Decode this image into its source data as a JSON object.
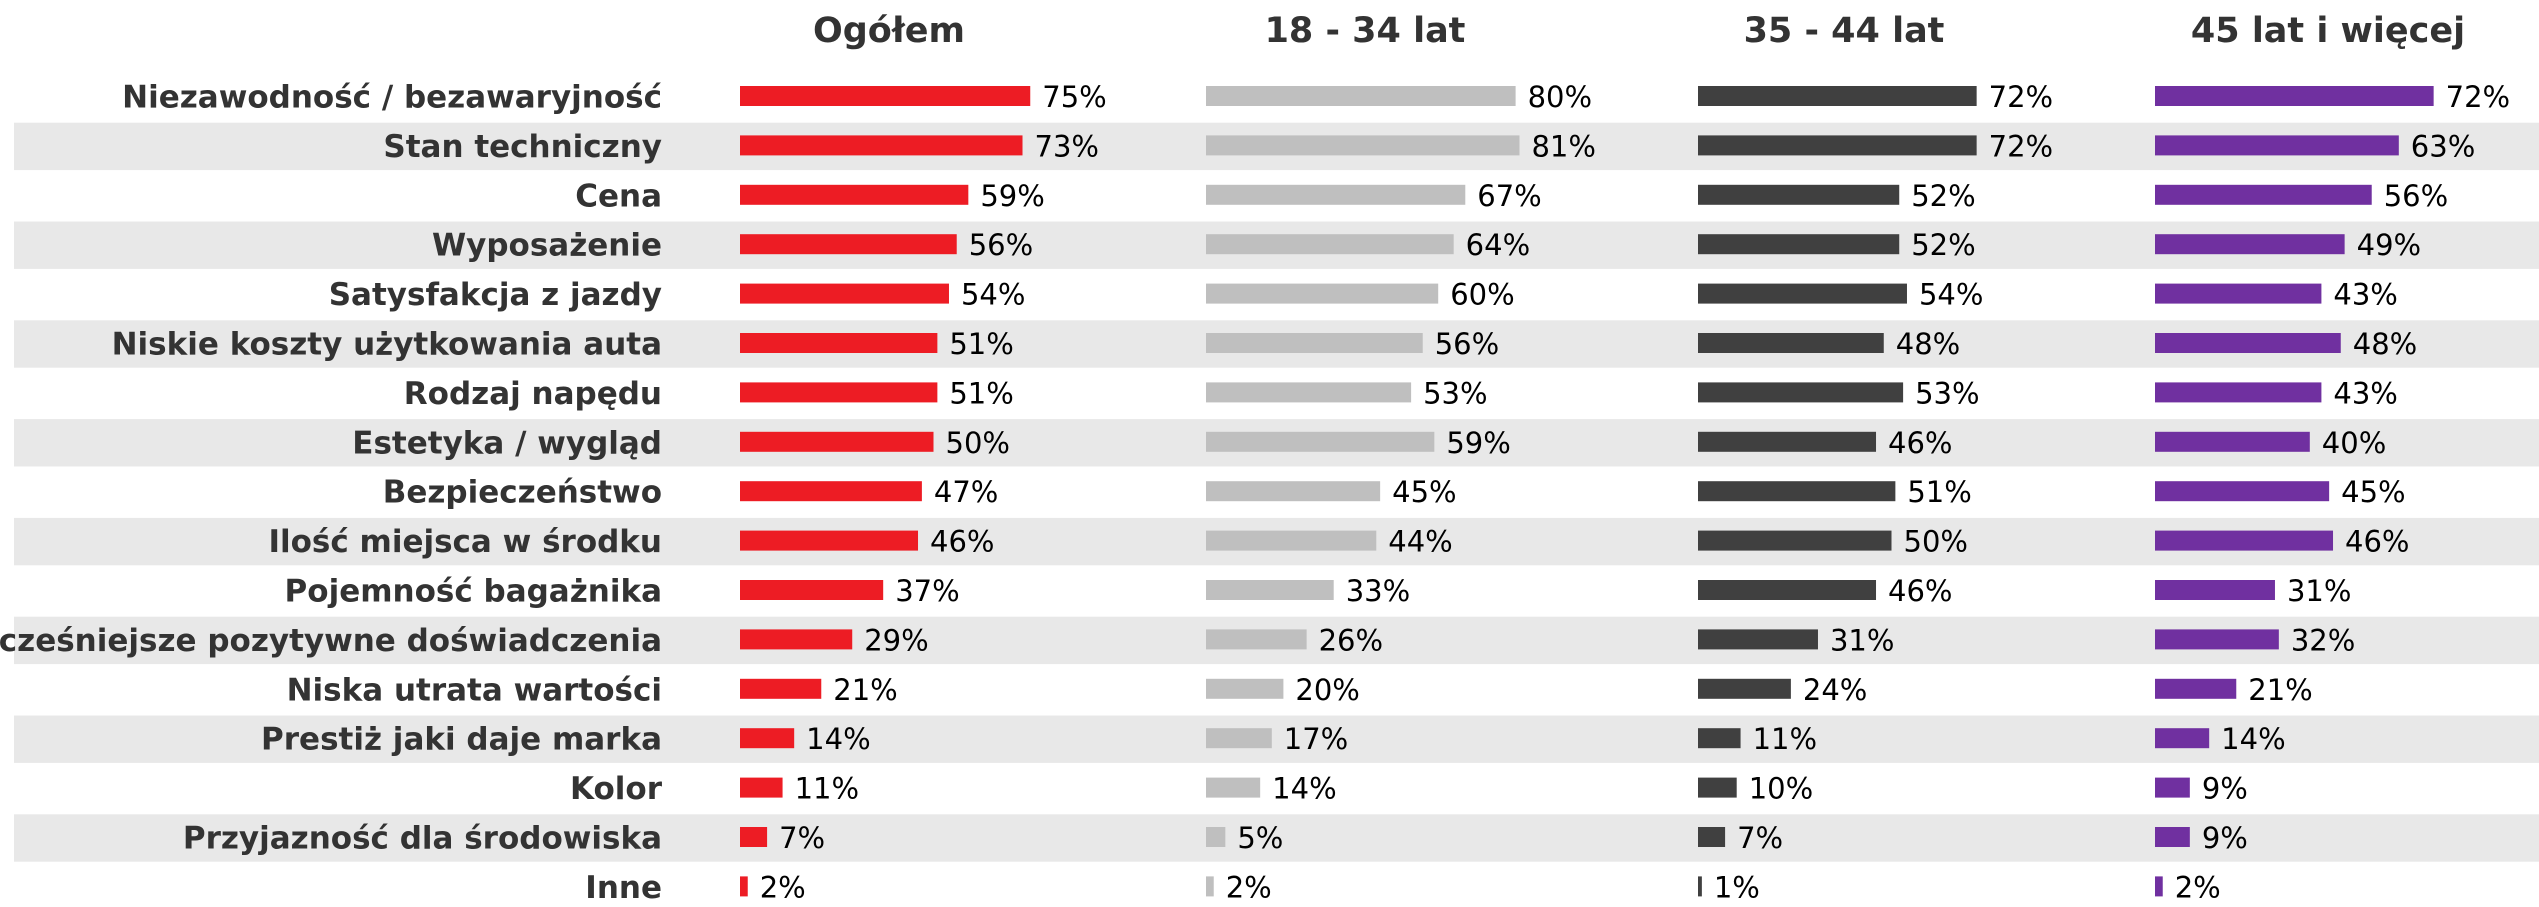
{
  "chart_data": {
    "type": "bar",
    "categories": [
      "Niezawodność / bezawaryjność",
      "Stan techniczny",
      "Cena",
      "Wyposażenie",
      "Satysfakcja z jazdy",
      "Niskie koszty użytkowania auta",
      "Rodzaj napędu",
      "Estetyka / wygląd",
      "Bezpieczeństwo",
      "Ilość miejsca w środku",
      "Pojemność bagażnika",
      "Wcześniejsze pozytywne doświadczenia",
      "Niska utrata wartości",
      "Prestiż jaki daje marka",
      "Kolor",
      "Przyjazność dla środowiska",
      "Inne"
    ],
    "series": [
      {
        "name": "Ogółem",
        "color": "#ed1c24",
        "values": [
          75,
          73,
          59,
          56,
          54,
          51,
          51,
          50,
          47,
          46,
          37,
          29,
          21,
          14,
          11,
          7,
          2
        ],
        "value_labels": [
          "75%",
          "73%",
          "59%",
          "56%",
          "54%",
          "51%",
          "51%",
          "50%",
          "47%",
          "46%",
          "37%",
          "29%",
          "21%",
          "14%",
          "11%",
          "7%",
          "2%"
        ]
      },
      {
        "name": "18 - 34 lat",
        "color": "#bfbfbf",
        "values": [
          80,
          81,
          67,
          64,
          60,
          56,
          53,
          59,
          45,
          44,
          33,
          26,
          20,
          17,
          14,
          5,
          2
        ],
        "value_labels": [
          "80%",
          "81%",
          "67%",
          "64%",
          "60%",
          "56%",
          "53%",
          "59%",
          "45%",
          "44%",
          "33%",
          "26%",
          "20%",
          "17%",
          "14%",
          "5%",
          "2%"
        ]
      },
      {
        "name": "35 - 44 lat",
        "color": "#404040",
        "values": [
          72,
          72,
          52,
          52,
          54,
          48,
          53,
          46,
          51,
          50,
          46,
          31,
          24,
          11,
          10,
          7,
          1
        ],
        "value_labels": [
          "72%",
          "72%",
          "52%",
          "52%",
          "54%",
          "48%",
          "53%",
          "46%",
          "51%",
          "50%",
          "46%",
          "31%",
          "24%",
          "11%",
          "10%",
          "7%",
          "1%"
        ]
      },
      {
        "name": "45 lat i więcej",
        "color": "#7030a0",
        "values": [
          72,
          63,
          56,
          49,
          43,
          48,
          43,
          40,
          45,
          46,
          31,
          32,
          21,
          14,
          9,
          9,
          2
        ],
        "value_labels": [
          "72%",
          "63%",
          "56%",
          "49%",
          "43%",
          "48%",
          "43%",
          "40%",
          "45%",
          "46%",
          "31%",
          "32%",
          "21%",
          "14%",
          "9%",
          "9%",
          "2%"
        ]
      }
    ]
  }
}
